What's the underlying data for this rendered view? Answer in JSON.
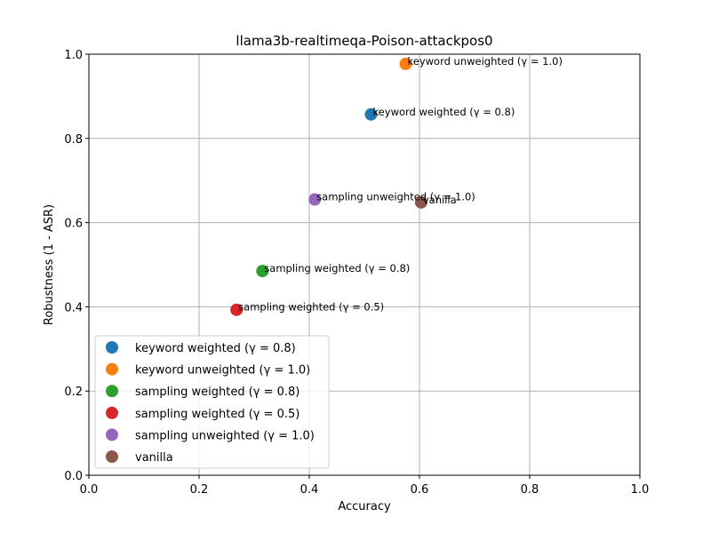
{
  "chart_data": {
    "type": "scatter",
    "title": "llama3b-realtimeqa-Poison-attackpos0",
    "xlabel": "Accuracy",
    "ylabel": "Robustness (1 - ASR)",
    "xlim": [
      0.0,
      1.0
    ],
    "ylim": [
      0.0,
      1.0
    ],
    "xticks": [
      "0.0",
      "0.2",
      "0.4",
      "0.6",
      "0.8",
      "1.0"
    ],
    "yticks": [
      "0.0",
      "0.2",
      "0.4",
      "0.6",
      "0.8",
      "1.0"
    ],
    "grid": true,
    "legend_position": "lower-left",
    "series": [
      {
        "name": "keyword weighted (γ = 0.8)",
        "x": 0.512,
        "y": 0.857,
        "color": "#1f77b4"
      },
      {
        "name": "keyword unweighted (γ = 1.0)",
        "x": 0.575,
        "y": 0.977,
        "color": "#ff7f0e"
      },
      {
        "name": "sampling weighted (γ = 0.8)",
        "x": 0.315,
        "y": 0.485,
        "color": "#2ca02c"
      },
      {
        "name": "sampling weighted (γ = 0.5)",
        "x": 0.268,
        "y": 0.393,
        "color": "#d62728"
      },
      {
        "name": "sampling unweighted (γ = 1.0)",
        "x": 0.41,
        "y": 0.655,
        "color": "#9467bd"
      },
      {
        "name": "vanilla",
        "x": 0.603,
        "y": 0.648,
        "color": "#8c564b"
      }
    ]
  }
}
